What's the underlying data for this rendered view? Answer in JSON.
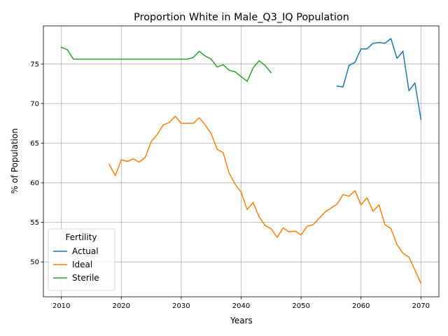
{
  "chart_data": {
    "type": "line",
    "title": "Proportion White in Male_Q3_IQ Population",
    "xlabel": "Years",
    "ylabel": "% of Population",
    "xlim": [
      2007,
      2073
    ],
    "ylim": [
      45.6,
      79.8
    ],
    "xticks": [
      2010,
      2020,
      2030,
      2040,
      2050,
      2060,
      2070
    ],
    "yticks": [
      50,
      55,
      60,
      65,
      70,
      75
    ],
    "grid": true,
    "legend": {
      "title": "Fertility",
      "placement": "lower-left"
    },
    "series": [
      {
        "name": "Actual",
        "color": "#1f77b4",
        "x": [
          2056,
          2057,
          2058,
          2059,
          2060,
          2061,
          2062,
          2063,
          2064,
          2065,
          2066,
          2067,
          2068,
          2069,
          2070
        ],
        "y": [
          72.2,
          72.1,
          74.8,
          75.2,
          76.9,
          76.9,
          77.6,
          77.7,
          77.6,
          78.2,
          75.7,
          76.6,
          71.6,
          72.6,
          68.0
        ]
      },
      {
        "name": "Ideal",
        "color": "#ff7f0e",
        "x": [
          2018,
          2019,
          2020,
          2021,
          2022,
          2023,
          2024,
          2025,
          2026,
          2027,
          2028,
          2029,
          2030,
          2031,
          2032,
          2033,
          2034,
          2035,
          2036,
          2037,
          2038,
          2039,
          2040,
          2041,
          2042,
          2043,
          2044,
          2045,
          2046,
          2047,
          2048,
          2049,
          2050,
          2051,
          2052,
          2053,
          2054,
          2055,
          2056,
          2057,
          2058,
          2059,
          2060,
          2061,
          2062,
          2063,
          2064,
          2065,
          2066,
          2067,
          2068,
          2069,
          2070
        ],
        "y": [
          62.3,
          60.9,
          62.9,
          62.7,
          63.0,
          62.6,
          63.2,
          65.2,
          66.1,
          67.3,
          67.6,
          68.4,
          67.5,
          67.5,
          67.5,
          68.2,
          67.3,
          66.2,
          64.2,
          63.8,
          61.2,
          59.8,
          58.8,
          56.6,
          57.5,
          55.7,
          54.6,
          54.2,
          53.1,
          54.3,
          53.8,
          53.9,
          53.4,
          54.5,
          54.7,
          55.5,
          56.3,
          56.8,
          57.3,
          58.5,
          58.3,
          59.0,
          57.2,
          58.1,
          56.4,
          57.2,
          54.7,
          54.2,
          52.2,
          51.1,
          50.6,
          49.0,
          47.3
        ]
      },
      {
        "name": "Sterile",
        "color": "#2ca02c",
        "x": [
          2010,
          2011,
          2012,
          2013,
          2014,
          2015,
          2016,
          2017,
          2018,
          2019,
          2020,
          2021,
          2022,
          2023,
          2024,
          2025,
          2026,
          2027,
          2028,
          2029,
          2030,
          2031,
          2032,
          2033,
          2034,
          2035,
          2036,
          2037,
          2038,
          2039,
          2040,
          2041,
          2042,
          2043,
          2044,
          2045
        ],
        "y": [
          77.1,
          76.8,
          75.6,
          75.6,
          75.6,
          75.6,
          75.6,
          75.6,
          75.6,
          75.6,
          75.6,
          75.6,
          75.6,
          75.6,
          75.6,
          75.6,
          75.6,
          75.6,
          75.6,
          75.6,
          75.6,
          75.6,
          75.8,
          76.6,
          76.0,
          75.6,
          74.6,
          74.9,
          74.2,
          74.0,
          73.4,
          72.8,
          74.5,
          75.4,
          74.8,
          73.9
        ]
      }
    ]
  }
}
